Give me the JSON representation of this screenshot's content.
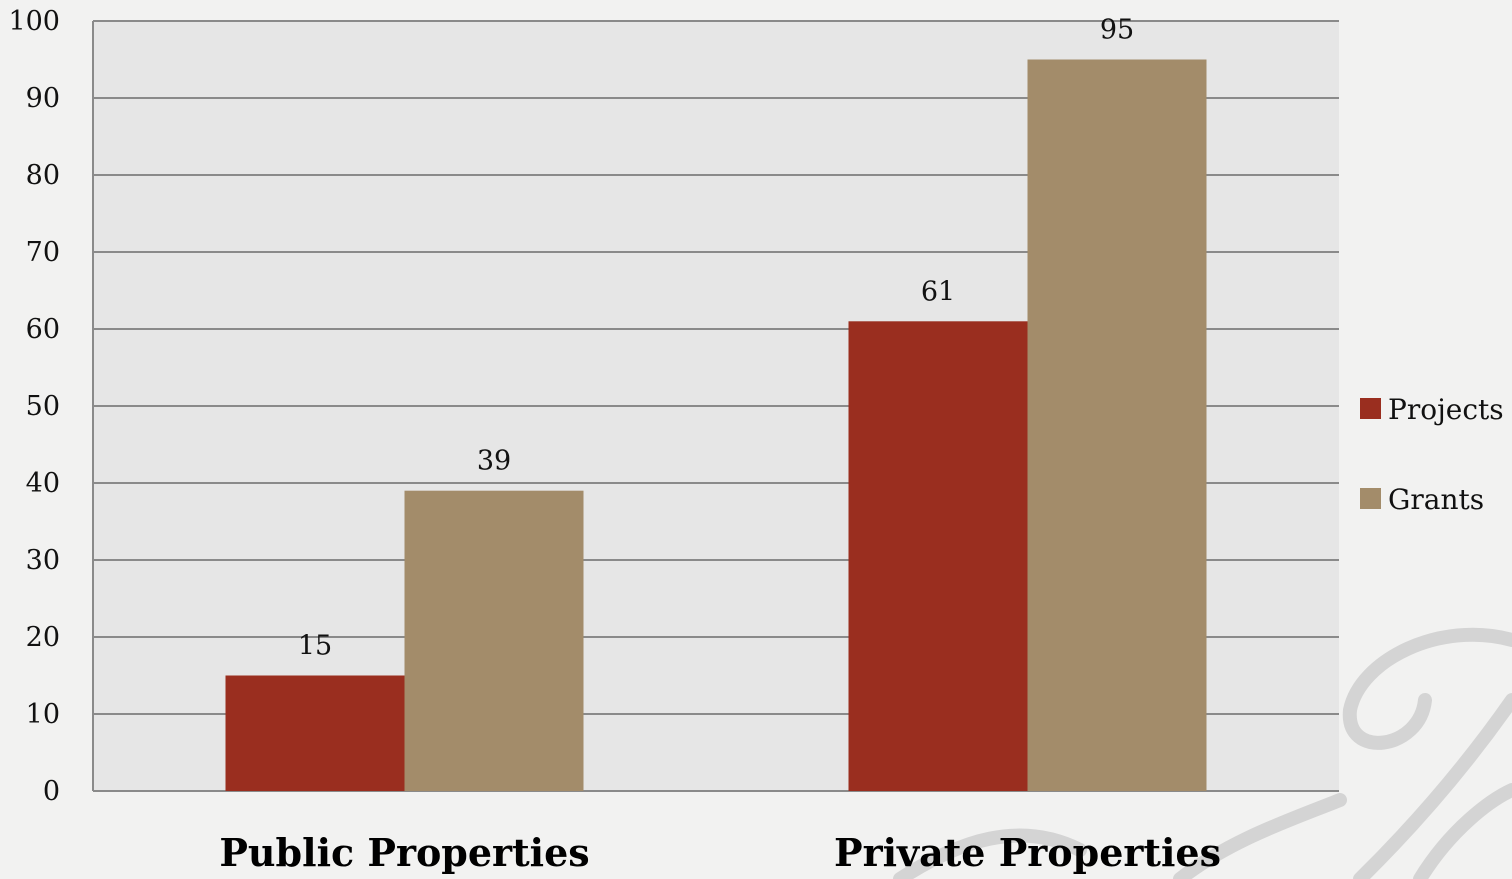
{
  "chart_data": {
    "type": "bar",
    "title": "",
    "xlabel": "",
    "ylabel": "",
    "categories": [
      "Public Properties",
      "Private Properties"
    ],
    "series": [
      {
        "name": "Projects",
        "values": [
          15,
          61
        ],
        "color": "#9a2e1f"
      },
      {
        "name": "Grants",
        "values": [
          39,
          95
        ],
        "color": "#a38c6a"
      }
    ],
    "ylim": [
      0,
      100
    ],
    "yticks": [
      0,
      10,
      20,
      30,
      40,
      50,
      60,
      70,
      80,
      90,
      100
    ],
    "grid": true,
    "legend_position": "right",
    "plot_background": "#e6e6e6",
    "grid_color": "#8a8a8a"
  }
}
